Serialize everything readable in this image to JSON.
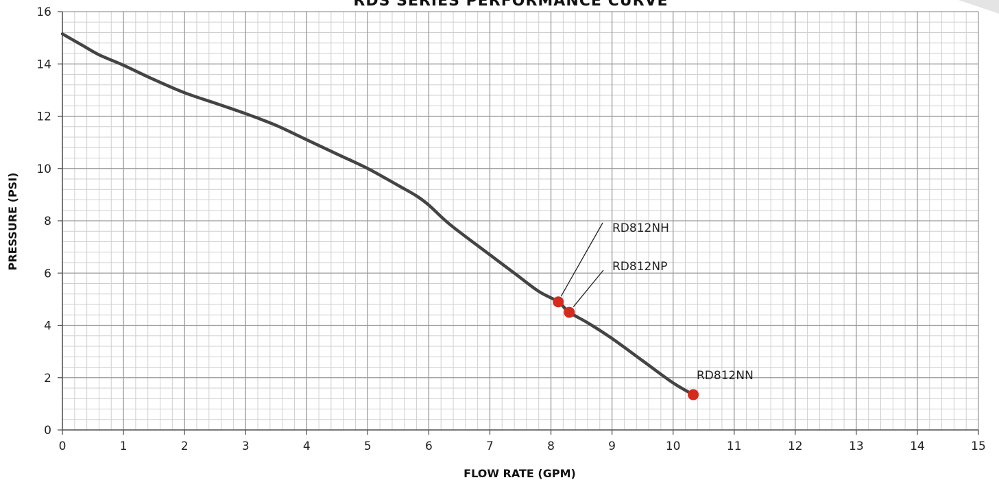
{
  "chart_data": {
    "type": "line",
    "title": "RDS SERIES PERFORMANCE CURVE",
    "xlabel": "FLOW RATE (GPM)",
    "ylabel": "PRESSURE (PSI)",
    "xlim": [
      0,
      15
    ],
    "ylim": [
      0,
      16
    ],
    "xticks": [
      0,
      1,
      2,
      3,
      4,
      5,
      6,
      7,
      8,
      9,
      10,
      11,
      12,
      13,
      14,
      15
    ],
    "yticks": [
      0,
      2,
      4,
      6,
      8,
      10,
      12,
      14,
      16
    ],
    "grid": true,
    "series": [
      {
        "x": [
          0,
          0.3,
          0.6,
          1,
          1.5,
          2,
          2.5,
          3,
          3.5,
          4,
          4.5,
          5,
          5.5,
          5.8,
          6,
          6.3,
          6.6,
          7,
          7.4,
          7.8,
          8.12,
          8.3,
          8.6,
          9,
          9.5,
          10,
          10.33
        ],
        "y": [
          15.15,
          14.75,
          14.35,
          13.95,
          13.4,
          12.9,
          12.5,
          12.1,
          11.65,
          11.1,
          10.55,
          10,
          9.35,
          8.95,
          8.6,
          7.95,
          7.4,
          6.7,
          6.0,
          5.3,
          4.9,
          4.5,
          4.1,
          3.5,
          2.65,
          1.8,
          1.35
        ],
        "color": "#444444"
      }
    ],
    "points": [
      {
        "label": "RD812NH",
        "x": 8.12,
        "y": 4.9
      },
      {
        "label": "RD812NP",
        "x": 8.3,
        "y": 4.5
      },
      {
        "label": "RD812NN",
        "x": 10.33,
        "y": 1.35
      }
    ],
    "point_color": "#d52b1e"
  }
}
